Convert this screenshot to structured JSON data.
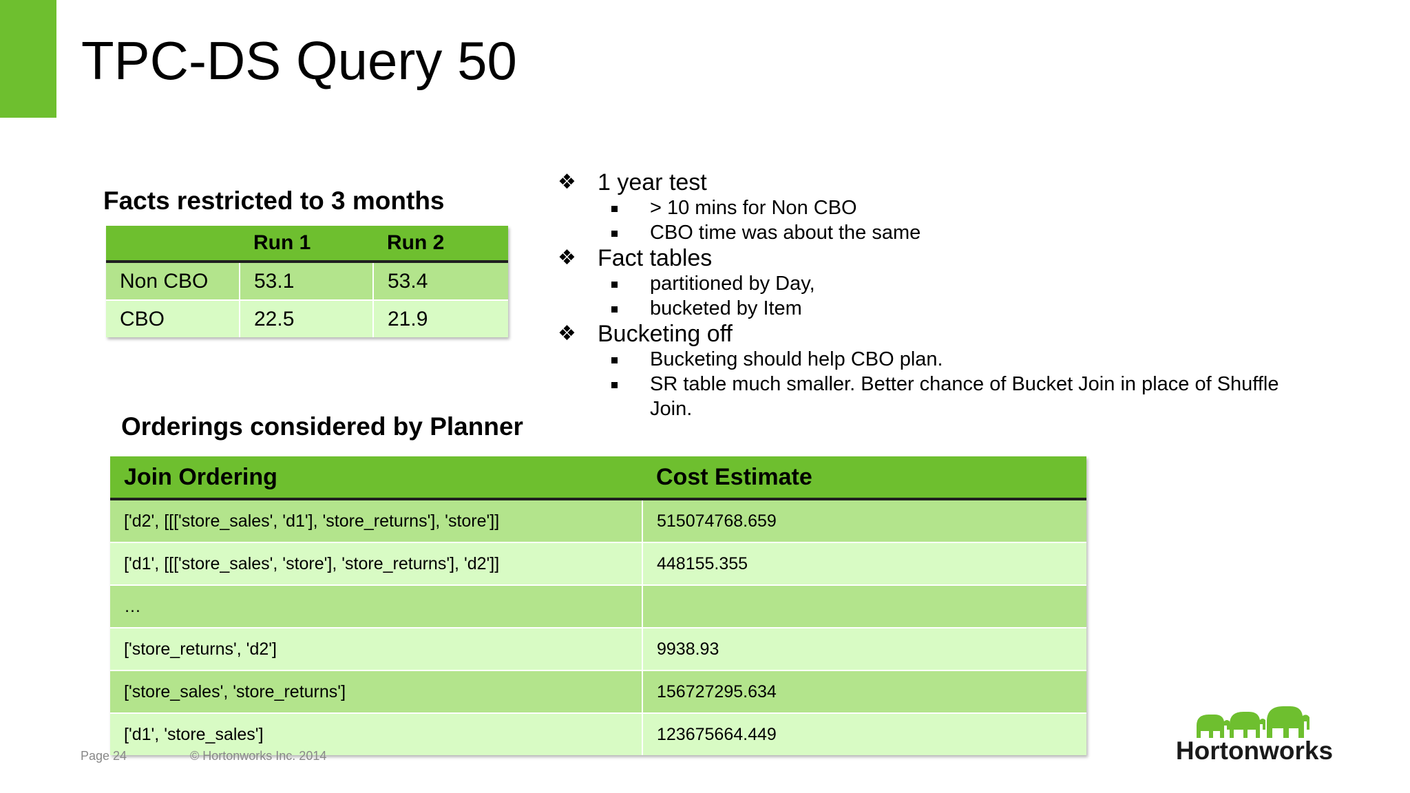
{
  "slide": {
    "title": "TPC-DS Query 50",
    "colors": {
      "accent": "#6ebf2f",
      "row_dark": "#b3e48c",
      "row_light": "#d8fbc4"
    }
  },
  "facts": {
    "heading": "Facts restricted to 3 months",
    "columns": [
      "",
      "Run 1",
      "Run 2"
    ],
    "rows": [
      [
        "Non CBO",
        "53.1",
        "53.4"
      ],
      [
        "CBO",
        "22.5",
        "21.9"
      ]
    ]
  },
  "orderings": {
    "heading": "Orderings considered by Planner",
    "columns": [
      "Join Ordering",
      "Cost Estimate"
    ],
    "rows": [
      [
        "['d2', [[['store_sales', 'd1'], 'store_returns'], 'store']]",
        "515074768.659"
      ],
      [
        "['d1', [[['store_sales', 'store'], 'store_returns'], 'd2']]",
        "448155.355"
      ],
      [
        "…",
        ""
      ],
      [
        "['store_returns', 'd2']",
        "9938.93"
      ],
      [
        "['store_sales', 'store_returns']",
        "156727295.634"
      ],
      [
        "['d1', 'store_sales']",
        "123675664.449"
      ]
    ]
  },
  "bullets": [
    {
      "marker": "❖",
      "text": "1 year test",
      "sub": [
        " > 10 mins for Non CBO",
        "CBO time was about the same"
      ]
    },
    {
      "marker": "❖",
      "text": "Fact tables",
      "sub": [
        "partitioned by Day,",
        "bucketed by Item"
      ]
    },
    {
      "marker": "❖",
      "text": "Bucketing off",
      "sub": [
        "Bucketing should help CBO plan.",
        "SR table much smaller. Better chance of Bucket Join in place of Shuffle Join."
      ]
    }
  ],
  "footer": {
    "page": "Page 24",
    "copyright": "© Hortonworks Inc. 2014"
  },
  "logo": {
    "text": "Hortonworks",
    "icon": "elephant-icon"
  }
}
